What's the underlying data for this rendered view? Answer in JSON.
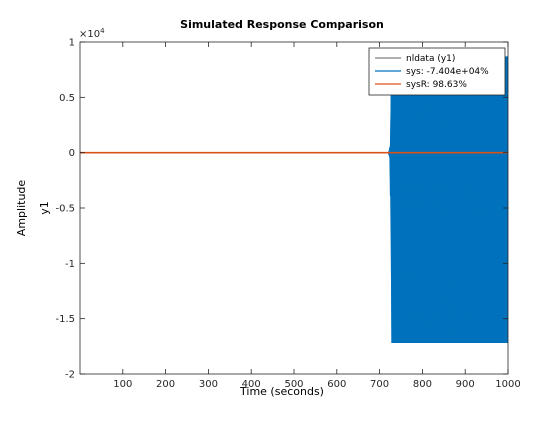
{
  "chart_data": {
    "type": "line",
    "title": "Simulated Response Comparison",
    "xlabel": "Time (seconds)",
    "ylabel": "Amplitude",
    "channel_label": "y1",
    "y_exponent_label": "×10",
    "y_exponent_power": "4",
    "xlim": [
      0,
      1000
    ],
    "ylim": [
      -2,
      1
    ],
    "y_scale_factor": 10000,
    "x_ticks": [
      100,
      200,
      300,
      400,
      500,
      600,
      700,
      800,
      900,
      1000
    ],
    "x_tick_labels": [
      "100",
      "200",
      "300",
      "400",
      "500",
      "600",
      "700",
      "800",
      "900",
      "1000"
    ],
    "y_ticks": [
      -2,
      -1.5,
      -1,
      -0.5,
      0,
      0.5,
      1
    ],
    "y_tick_labels": [
      "-2",
      "-1.5",
      "-1",
      "-0.5",
      "0",
      "0.5",
      "1"
    ],
    "grid": false,
    "legend_position": "top-right",
    "series": [
      {
        "name": "nldata (y1)",
        "color": "#808080",
        "x": [
          0,
          1000
        ],
        "y": [
          0,
          0
        ]
      },
      {
        "name": "sys: -7.404e+04%",
        "color": "#0072BD",
        "style": "oscillating-band",
        "x": [
          0,
          720,
          724,
          728,
          1000
        ],
        "y_upper": [
          0,
          0,
          0.06,
          0.86,
          0.87
        ],
        "y_lower": [
          0,
          0,
          -0.06,
          -1.72,
          -1.72
        ]
      },
      {
        "name": "sysR: 98.63%",
        "color": "#D95319",
        "x": [
          0,
          1000
        ],
        "y": [
          0,
          0
        ]
      }
    ]
  }
}
